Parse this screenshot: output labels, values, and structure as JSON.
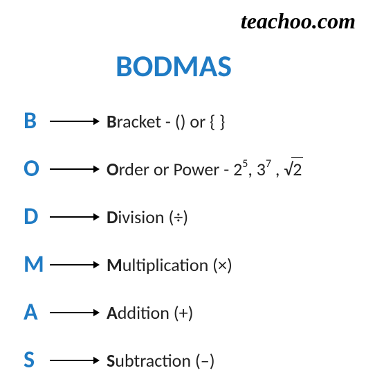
{
  "watermark": "teachoo.com",
  "title": "BODMAS",
  "colors": {
    "accent": "#1f7bc4",
    "text": "#222222",
    "background": "#ffffff",
    "arrow": "#000000"
  },
  "typography": {
    "title_fontsize": 44,
    "letter_fontsize": 34,
    "desc_fontsize": 26,
    "watermark_fontsize": 32
  },
  "rows": [
    {
      "letter": "B",
      "bold": "B",
      "rest": "racket - () or { }"
    },
    {
      "letter": "O",
      "bold": "O",
      "rest_html": "rder or Power -  2<span class=\"sup\">5</span>, 3<span class=\"sup\">7</span> , <span class=\"sqrt-wrap\"><span class=\"sqrt-sym\">√</span><span class=\"radicand\">2</span></span>"
    },
    {
      "letter": "D",
      "bold": "D",
      "rest": "ivision (÷)"
    },
    {
      "letter": "M",
      "bold": "M",
      "rest": "ultiplication (×)"
    },
    {
      "letter": "A",
      "bold": "A",
      "rest": "ddition (+)"
    },
    {
      "letter": "S",
      "bold": "S",
      "rest": "ubtraction (–)"
    }
  ],
  "arrow": {
    "length": 72,
    "stroke_width": 2,
    "head_size": 9,
    "color": "#000000"
  }
}
